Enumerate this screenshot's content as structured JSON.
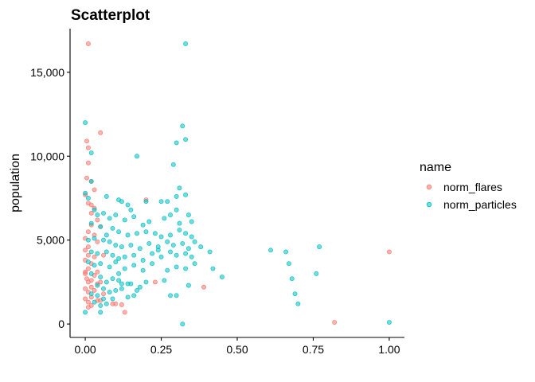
{
  "chart_data": {
    "type": "scatter",
    "title": "Scatterplot",
    "xlabel": "",
    "ylabel": "population",
    "xlim": [
      -0.05,
      1.05
    ],
    "ylim": [
      -800,
      17600
    ],
    "x_ticks": [
      0.0,
      0.25,
      0.5,
      0.75,
      1.0
    ],
    "x_tick_labels": [
      "0.00",
      "0.25",
      "0.50",
      "0.75",
      "1.00"
    ],
    "y_ticks": [
      0,
      5000,
      10000,
      15000
    ],
    "y_tick_labels": [
      "0",
      "5,000",
      "10,000",
      "15,000"
    ],
    "grid": false,
    "legend": {
      "title": "name",
      "position": "right"
    },
    "series": [
      {
        "name": "norm_flares",
        "color": "#F8766D",
        "points": [
          [
            0.01,
            16700
          ],
          [
            0.05,
            11400
          ],
          [
            0.005,
            10900
          ],
          [
            0.01,
            10500
          ],
          [
            0.01,
            9600
          ],
          [
            0.005,
            8700
          ],
          [
            0.02,
            8500
          ],
          [
            0.03,
            8000
          ],
          [
            0.0,
            7700
          ],
          [
            0.01,
            7200
          ],
          [
            0.02,
            7100
          ],
          [
            0.03,
            6900
          ],
          [
            0.02,
            6600
          ],
          [
            0.04,
            6200
          ],
          [
            0.02,
            5900
          ],
          [
            0.05,
            5800
          ],
          [
            0.01,
            5500
          ],
          [
            0.03,
            5300
          ],
          [
            0.0,
            5100
          ],
          [
            0.04,
            4900
          ],
          [
            0.01,
            4600
          ],
          [
            0.0,
            4400
          ],
          [
            0.01,
            4100
          ],
          [
            0.03,
            4000
          ],
          [
            0.06,
            4100
          ],
          [
            0.0,
            3800
          ],
          [
            0.02,
            3600
          ],
          [
            0.01,
            3300
          ],
          [
            0.04,
            3100
          ],
          [
            0.0,
            3000
          ],
          [
            0.005,
            2700
          ],
          [
            0.02,
            2600
          ],
          [
            0.01,
            2500
          ],
          [
            0.04,
            2400
          ],
          [
            0.02,
            2200
          ],
          [
            0.0,
            2100
          ],
          [
            0.03,
            2000
          ],
          [
            0.01,
            1900
          ],
          [
            0.06,
            1800
          ],
          [
            0.02,
            1600
          ],
          [
            0.0,
            1500
          ],
          [
            0.04,
            1400
          ],
          [
            0.01,
            1300
          ],
          [
            0.02,
            1100
          ],
          [
            0.09,
            1200
          ],
          [
            0.1,
            1200
          ],
          [
            0.12,
            1150
          ],
          [
            0.05,
            1400
          ],
          [
            0.13,
            700
          ],
          [
            0.2,
            7400
          ],
          [
            0.23,
            2500
          ],
          [
            0.39,
            2200
          ],
          [
            0.82,
            100
          ],
          [
            1.0,
            4300
          ],
          [
            0.05,
            2500
          ],
          [
            0.0,
            3100
          ],
          [
            0.01,
            1000
          ],
          [
            0.03,
            2900
          ]
        ]
      },
      {
        "name": "norm_particles",
        "color": "#00BFC4",
        "points": [
          [
            0.0,
            12000
          ],
          [
            0.33,
            16700
          ],
          [
            0.02,
            10200
          ],
          [
            0.17,
            10000
          ],
          [
            0.32,
            11800
          ],
          [
            0.33,
            11000
          ],
          [
            0.3,
            10800
          ],
          [
            0.29,
            9500
          ],
          [
            0.02,
            8500
          ],
          [
            0.0,
            7800
          ],
          [
            0.01,
            7500
          ],
          [
            0.07,
            7600
          ],
          [
            0.11,
            7400
          ],
          [
            0.12,
            7300
          ],
          [
            0.14,
            7100
          ],
          [
            0.15,
            6800
          ],
          [
            0.2,
            7300
          ],
          [
            0.25,
            7300
          ],
          [
            0.31,
            8100
          ],
          [
            0.33,
            7700
          ],
          [
            0.3,
            7600
          ],
          [
            0.27,
            7300
          ],
          [
            0.03,
            6800
          ],
          [
            0.04,
            6500
          ],
          [
            0.06,
            6600
          ],
          [
            0.08,
            6300
          ],
          [
            0.1,
            6500
          ],
          [
            0.13,
            6200
          ],
          [
            0.16,
            6400
          ],
          [
            0.19,
            5900
          ],
          [
            0.21,
            6100
          ],
          [
            0.26,
            6300
          ],
          [
            0.28,
            6500
          ],
          [
            0.3,
            6800
          ],
          [
            0.34,
            6500
          ],
          [
            0.35,
            6100
          ],
          [
            0.02,
            6000
          ],
          [
            0.05,
            5800
          ],
          [
            0.07,
            5300
          ],
          [
            0.09,
            5700
          ],
          [
            0.11,
            5500
          ],
          [
            0.14,
            5300
          ],
          [
            0.17,
            5400
          ],
          [
            0.2,
            5500
          ],
          [
            0.23,
            5400
          ],
          [
            0.25,
            5200
          ],
          [
            0.28,
            5300
          ],
          [
            0.31,
            5600
          ],
          [
            0.33,
            5400
          ],
          [
            0.35,
            5200
          ],
          [
            0.01,
            5000
          ],
          [
            0.03,
            5100
          ],
          [
            0.06,
            5000
          ],
          [
            0.08,
            4900
          ],
          [
            0.1,
            4700
          ],
          [
            0.12,
            4600
          ],
          [
            0.15,
            4700
          ],
          [
            0.18,
            4500
          ],
          [
            0.21,
            4800
          ],
          [
            0.24,
            4600
          ],
          [
            0.27,
            4900
          ],
          [
            0.29,
            4700
          ],
          [
            0.32,
            4800
          ],
          [
            0.34,
            4500
          ],
          [
            0.36,
            4900
          ],
          [
            0.02,
            4300
          ],
          [
            0.04,
            4200
          ],
          [
            0.07,
            4300
          ],
          [
            0.09,
            4100
          ],
          [
            0.11,
            3900
          ],
          [
            0.13,
            4000
          ],
          [
            0.16,
            4100
          ],
          [
            0.19,
            3800
          ],
          [
            0.22,
            4200
          ],
          [
            0.25,
            4000
          ],
          [
            0.28,
            4300
          ],
          [
            0.3,
            4100
          ],
          [
            0.33,
            4200
          ],
          [
            0.35,
            4000
          ],
          [
            0.38,
            4600
          ],
          [
            0.41,
            4300
          ],
          [
            0.01,
            3700
          ],
          [
            0.03,
            3500
          ],
          [
            0.05,
            3600
          ],
          [
            0.08,
            3400
          ],
          [
            0.1,
            3700
          ],
          [
            0.13,
            3300
          ],
          [
            0.16,
            3500
          ],
          [
            0.19,
            3200
          ],
          [
            0.22,
            3600
          ],
          [
            0.27,
            3200
          ],
          [
            0.3,
            3400
          ],
          [
            0.33,
            3300
          ],
          [
            0.36,
            3600
          ],
          [
            0.42,
            3300
          ],
          [
            0.45,
            2800
          ],
          [
            0.02,
            3000
          ],
          [
            0.05,
            2800
          ],
          [
            0.07,
            2500
          ],
          [
            0.09,
            2700
          ],
          [
            0.11,
            2600
          ],
          [
            0.12,
            2400
          ],
          [
            0.14,
            2400
          ],
          [
            0.15,
            2400
          ],
          [
            0.17,
            2000
          ],
          [
            0.2,
            2500
          ],
          [
            0.26,
            2600
          ],
          [
            0.34,
            2300
          ],
          [
            0.04,
            2300
          ],
          [
            0.06,
            2100
          ],
          [
            0.08,
            1900
          ],
          [
            0.1,
            2000
          ],
          [
            0.12,
            2100
          ],
          [
            0.14,
            1600
          ],
          [
            0.16,
            1700
          ],
          [
            0.28,
            1700
          ],
          [
            0.3,
            1700
          ],
          [
            0.02,
            1800
          ],
          [
            0.04,
            1700
          ],
          [
            0.06,
            1500
          ],
          [
            0.03,
            1300
          ],
          [
            0.05,
            1100
          ],
          [
            0.07,
            1200
          ],
          [
            0.0,
            700
          ],
          [
            0.05,
            700
          ],
          [
            0.32,
            0
          ],
          [
            0.61,
            4400
          ],
          [
            0.66,
            4300
          ],
          [
            0.67,
            3600
          ],
          [
            0.77,
            4600
          ],
          [
            0.76,
            3000
          ],
          [
            0.68,
            2700
          ],
          [
            0.69,
            1800
          ],
          [
            0.7,
            1200
          ],
          [
            1.0,
            100
          ],
          [
            0.31,
            6000
          ],
          [
            0.24,
            4400
          ],
          [
            0.18,
            2200
          ],
          [
            0.09,
            1500
          ],
          [
            0.11,
            3000
          ]
        ]
      }
    ]
  }
}
